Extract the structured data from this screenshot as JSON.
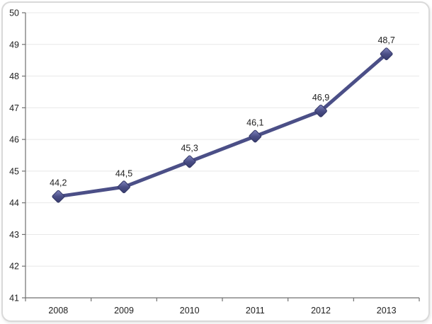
{
  "frame": {
    "background": "#ffffff",
    "border_color": "#d9d9d9"
  },
  "chart_data": {
    "type": "line",
    "title": "",
    "xlabel": "",
    "ylabel": "",
    "categories": [
      "2008",
      "2009",
      "2010",
      "2011",
      "2012",
      "2013"
    ],
    "series": [
      {
        "name": "series-1",
        "values": [
          44.2,
          44.5,
          45.3,
          46.1,
          46.9,
          48.7
        ],
        "point_labels": [
          "44,2",
          "44,5",
          "45,3",
          "46,1",
          "46,9",
          "48,7"
        ]
      }
    ],
    "ylim": [
      41,
      50
    ],
    "ytick_step": 1,
    "ytick_labels": [
      "41",
      "42",
      "43",
      "44",
      "45",
      "46",
      "47",
      "48",
      "49",
      "50"
    ],
    "grid": "horizontal",
    "legend": "none",
    "colors": {
      "line": "#4B4F87",
      "marker_light": "#8488C2",
      "marker_mid": "#4B4F87",
      "marker_dark": "#35396B",
      "marker_stroke": "#323664",
      "grid": "#e8e8e8",
      "axis": "#707070",
      "label": "#1f1f1f"
    }
  }
}
